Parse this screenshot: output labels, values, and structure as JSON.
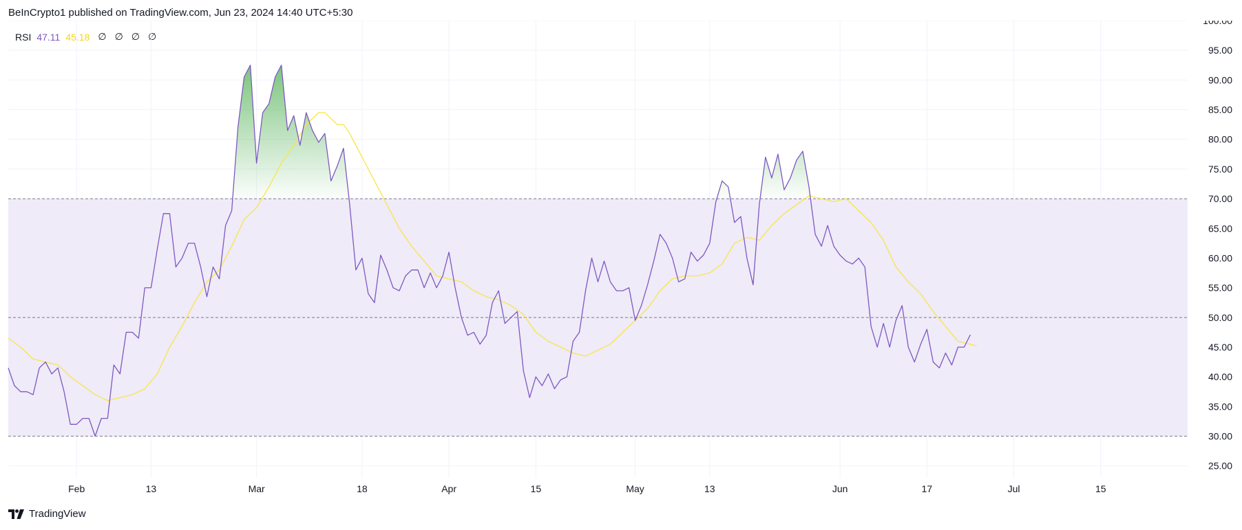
{
  "header": {
    "attribution": "BeInCrypto1 published on TradingView.com, Jun 23, 2024 14:40 UTC+5:30"
  },
  "legend": {
    "name": "RSI",
    "rsi_value": "47.11",
    "ma_value": "45.18",
    "na_values": [
      "∅",
      "∅",
      "∅",
      "∅"
    ]
  },
  "footer": {
    "brand": "TradingView",
    "logo_icon": "tradingview-logo-icon"
  },
  "colors": {
    "rsi_line": "#7e57c2",
    "ma_line": "#f9e547",
    "band_fill": "#efebf8",
    "overbought_fill": "#4caf50",
    "grid": "#f0f3fa",
    "dashed": "#787b86"
  },
  "chart_data": {
    "type": "line",
    "title": "",
    "xlabel": "",
    "ylabel": "",
    "ylim": [
      23,
      100
    ],
    "y_ticks": [
      "25.00",
      "30.00",
      "35.00",
      "40.00",
      "45.00",
      "50.00",
      "55.00",
      "60.00",
      "65.00",
      "70.00",
      "75.00",
      "80.00",
      "85.00",
      "90.00",
      "95.00",
      "100.00"
    ],
    "x_tick_labels": [
      {
        "date": "2024-02-01",
        "label": "Feb"
      },
      {
        "date": "2024-02-13",
        "label": "13"
      },
      {
        "date": "2024-03-01",
        "label": "Mar"
      },
      {
        "date": "2024-03-18",
        "label": "18"
      },
      {
        "date": "2024-04-01",
        "label": "Apr"
      },
      {
        "date": "2024-04-15",
        "label": "15"
      },
      {
        "date": "2024-05-01",
        "label": "May"
      },
      {
        "date": "2024-05-13",
        "label": "13"
      },
      {
        "date": "2024-06-03",
        "label": "Jun"
      },
      {
        "date": "2024-06-17",
        "label": "17"
      },
      {
        "date": "2024-07-01",
        "label": "Jul"
      },
      {
        "date": "2024-07-15",
        "label": "15"
      }
    ],
    "x_range": [
      "2024-01-21",
      "2024-07-29"
    ],
    "levels": {
      "upper": 70,
      "middle": 50,
      "lower": 30
    },
    "grid": true,
    "series": [
      {
        "key": "rsi",
        "points": [
          [
            "2024-01-21",
            41.5
          ],
          [
            "2024-01-22",
            38.5
          ],
          [
            "2024-01-23",
            37.5
          ],
          [
            "2024-01-24",
            37.5
          ],
          [
            "2024-01-25",
            37
          ],
          [
            "2024-01-26",
            41.5
          ],
          [
            "2024-01-27",
            42.5
          ],
          [
            "2024-01-28",
            40.5
          ],
          [
            "2024-01-29",
            41.5
          ],
          [
            "2024-01-30",
            37.5
          ],
          [
            "2024-01-31",
            32
          ],
          [
            "2024-02-01",
            32
          ],
          [
            "2024-02-02",
            33
          ],
          [
            "2024-02-03",
            33
          ],
          [
            "2024-02-04",
            30
          ],
          [
            "2024-02-05",
            33
          ],
          [
            "2024-02-06",
            33
          ],
          [
            "2024-02-07",
            42
          ],
          [
            "2024-02-08",
            40.5
          ],
          [
            "2024-02-09",
            47.5
          ],
          [
            "2024-02-10",
            47.5
          ],
          [
            "2024-02-11",
            46.5
          ],
          [
            "2024-02-12",
            55
          ],
          [
            "2024-02-13",
            55
          ],
          [
            "2024-02-14",
            61.5
          ],
          [
            "2024-02-15",
            67.5
          ],
          [
            "2024-02-16",
            67.5
          ],
          [
            "2024-02-17",
            58.5
          ],
          [
            "2024-02-18",
            60
          ],
          [
            "2024-02-19",
            62.5
          ],
          [
            "2024-02-20",
            62.5
          ],
          [
            "2024-02-21",
            58.5
          ],
          [
            "2024-02-22",
            53.5
          ],
          [
            "2024-02-23",
            58.5
          ],
          [
            "2024-02-24",
            56.5
          ],
          [
            "2024-02-25",
            65.5
          ],
          [
            "2024-02-26",
            68
          ],
          [
            "2024-02-27",
            82
          ],
          [
            "2024-02-28",
            90.5
          ],
          [
            "2024-02-29",
            92.5
          ],
          [
            "2024-03-01",
            76
          ],
          [
            "2024-03-02",
            84.5
          ],
          [
            "2024-03-03",
            86
          ],
          [
            "2024-03-04",
            90.5
          ],
          [
            "2024-03-05",
            92.5
          ],
          [
            "2024-03-06",
            81.5
          ],
          [
            "2024-03-07",
            84
          ],
          [
            "2024-03-08",
            79
          ],
          [
            "2024-03-09",
            84.5
          ],
          [
            "2024-03-10",
            81.5
          ],
          [
            "2024-03-11",
            79.5
          ],
          [
            "2024-03-12",
            81
          ],
          [
            "2024-03-13",
            73
          ],
          [
            "2024-03-14",
            75.5
          ],
          [
            "2024-03-15",
            78.5
          ],
          [
            "2024-03-16",
            69
          ],
          [
            "2024-03-17",
            58
          ],
          [
            "2024-03-18",
            60
          ],
          [
            "2024-03-19",
            54
          ],
          [
            "2024-03-20",
            52.5
          ],
          [
            "2024-03-21",
            60.5
          ],
          [
            "2024-03-22",
            58
          ],
          [
            "2024-03-23",
            55
          ],
          [
            "2024-03-24",
            54.5
          ],
          [
            "2024-03-25",
            57
          ],
          [
            "2024-03-26",
            58
          ],
          [
            "2024-03-27",
            58
          ],
          [
            "2024-03-28",
            55
          ],
          [
            "2024-03-29",
            57.5
          ],
          [
            "2024-03-30",
            55
          ],
          [
            "2024-03-31",
            57
          ],
          [
            "2024-04-01",
            61
          ],
          [
            "2024-04-02",
            55
          ],
          [
            "2024-04-03",
            50
          ],
          [
            "2024-04-04",
            47
          ],
          [
            "2024-04-05",
            47.5
          ],
          [
            "2024-04-06",
            45.5
          ],
          [
            "2024-04-07",
            47
          ],
          [
            "2024-04-08",
            52.5
          ],
          [
            "2024-04-09",
            54.5
          ],
          [
            "2024-04-10",
            49
          ],
          [
            "2024-04-11",
            50
          ],
          [
            "2024-04-12",
            51
          ],
          [
            "2024-04-13",
            41
          ],
          [
            "2024-04-14",
            36.5
          ],
          [
            "2024-04-15",
            40
          ],
          [
            "2024-04-16",
            38.5
          ],
          [
            "2024-04-17",
            40.5
          ],
          [
            "2024-04-18",
            38
          ],
          [
            "2024-04-19",
            39.5
          ],
          [
            "2024-04-20",
            40
          ],
          [
            "2024-04-21",
            46
          ],
          [
            "2024-04-22",
            47.5
          ],
          [
            "2024-04-23",
            54.5
          ],
          [
            "2024-04-24",
            60
          ],
          [
            "2024-04-25",
            56
          ],
          [
            "2024-04-26",
            59.5
          ],
          [
            "2024-04-27",
            56
          ],
          [
            "2024-04-28",
            54.5
          ],
          [
            "2024-04-29",
            54.5
          ],
          [
            "2024-04-30",
            55
          ],
          [
            "2024-05-01",
            49.5
          ],
          [
            "2024-05-02",
            52
          ],
          [
            "2024-05-03",
            55.5
          ],
          [
            "2024-05-04",
            59.5
          ],
          [
            "2024-05-05",
            64
          ],
          [
            "2024-05-06",
            62.5
          ],
          [
            "2024-05-07",
            60
          ],
          [
            "2024-05-08",
            56
          ],
          [
            "2024-05-09",
            56.5
          ],
          [
            "2024-05-10",
            61
          ],
          [
            "2024-05-11",
            59.5
          ],
          [
            "2024-05-12",
            60.5
          ],
          [
            "2024-05-13",
            62.5
          ],
          [
            "2024-05-14",
            69.5
          ],
          [
            "2024-05-15",
            73
          ],
          [
            "2024-05-16",
            72
          ],
          [
            "2024-05-17",
            66
          ],
          [
            "2024-05-18",
            67
          ],
          [
            "2024-05-19",
            60
          ],
          [
            "2024-05-20",
            55.5
          ],
          [
            "2024-05-21",
            69
          ],
          [
            "2024-05-22",
            77
          ],
          [
            "2024-05-23",
            73.5
          ],
          [
            "2024-05-24",
            77.5
          ],
          [
            "2024-05-25",
            71.5
          ],
          [
            "2024-05-26",
            73.5
          ],
          [
            "2024-05-27",
            76.5
          ],
          [
            "2024-05-28",
            78
          ],
          [
            "2024-05-29",
            72
          ],
          [
            "2024-05-30",
            64
          ],
          [
            "2024-05-31",
            62
          ],
          [
            "2024-06-01",
            65.5
          ],
          [
            "2024-06-02",
            62
          ],
          [
            "2024-06-03",
            60.5
          ],
          [
            "2024-06-04",
            59.5
          ],
          [
            "2024-06-05",
            59
          ],
          [
            "2024-06-06",
            60
          ],
          [
            "2024-06-07",
            58.5
          ],
          [
            "2024-06-08",
            48.5
          ],
          [
            "2024-06-09",
            45
          ],
          [
            "2024-06-10",
            49
          ],
          [
            "2024-06-11",
            45
          ],
          [
            "2024-06-12",
            49.5
          ],
          [
            "2024-06-13",
            52
          ],
          [
            "2024-06-14",
            45
          ],
          [
            "2024-06-15",
            42.5
          ],
          [
            "2024-06-16",
            45.5
          ],
          [
            "2024-06-17",
            48
          ],
          [
            "2024-06-18",
            42.5
          ],
          [
            "2024-06-19",
            41.5
          ],
          [
            "2024-06-20",
            44
          ],
          [
            "2024-06-21",
            42
          ],
          [
            "2024-06-22",
            45
          ],
          [
            "2024-06-23",
            45
          ],
          [
            "2024-06-24",
            47.1
          ]
        ]
      },
      {
        "key": "ma",
        "points": [
          [
            "2024-01-21",
            46.5
          ],
          [
            "2024-01-23",
            45
          ],
          [
            "2024-01-25",
            43
          ],
          [
            "2024-01-27",
            42.5
          ],
          [
            "2024-01-29",
            42
          ],
          [
            "2024-01-31",
            40
          ],
          [
            "2024-02-02",
            38.5
          ],
          [
            "2024-02-04",
            37
          ],
          [
            "2024-02-06",
            36
          ],
          [
            "2024-02-08",
            36.5
          ],
          [
            "2024-02-10",
            37
          ],
          [
            "2024-02-12",
            38
          ],
          [
            "2024-02-14",
            40.5
          ],
          [
            "2024-02-16",
            45
          ],
          [
            "2024-02-18",
            48.5
          ],
          [
            "2024-02-20",
            52.5
          ],
          [
            "2024-02-22",
            56
          ],
          [
            "2024-02-24",
            58
          ],
          [
            "2024-02-26",
            62
          ],
          [
            "2024-02-28",
            66.5
          ],
          [
            "2024-03-01",
            68.5
          ],
          [
            "2024-03-03",
            72
          ],
          [
            "2024-03-05",
            76
          ],
          [
            "2024-03-07",
            79
          ],
          [
            "2024-03-09",
            82.5
          ],
          [
            "2024-03-11",
            84.5
          ],
          [
            "2024-03-12",
            84.5
          ],
          [
            "2024-03-14",
            82.5
          ],
          [
            "2024-03-15",
            82.5
          ],
          [
            "2024-03-16",
            81
          ],
          [
            "2024-03-18",
            77
          ],
          [
            "2024-03-20",
            73
          ],
          [
            "2024-03-22",
            69
          ],
          [
            "2024-03-24",
            65
          ],
          [
            "2024-03-26",
            62
          ],
          [
            "2024-03-28",
            59.5
          ],
          [
            "2024-03-30",
            57
          ],
          [
            "2024-04-01",
            56.5
          ],
          [
            "2024-04-03",
            56
          ],
          [
            "2024-04-05",
            54.5
          ],
          [
            "2024-04-07",
            53.5
          ],
          [
            "2024-04-09",
            53
          ],
          [
            "2024-04-11",
            52
          ],
          [
            "2024-04-13",
            50.5
          ],
          [
            "2024-04-15",
            47.5
          ],
          [
            "2024-04-17",
            46
          ],
          [
            "2024-04-19",
            45
          ],
          [
            "2024-04-21",
            44
          ],
          [
            "2024-04-23",
            43.5
          ],
          [
            "2024-04-25",
            44.5
          ],
          [
            "2024-04-27",
            45.5
          ],
          [
            "2024-04-29",
            47.5
          ],
          [
            "2024-05-01",
            49.5
          ],
          [
            "2024-05-03",
            51.5
          ],
          [
            "2024-05-05",
            54.5
          ],
          [
            "2024-05-07",
            56.5
          ],
          [
            "2024-05-09",
            57
          ],
          [
            "2024-05-11",
            57
          ],
          [
            "2024-05-13",
            57.5
          ],
          [
            "2024-05-15",
            59
          ],
          [
            "2024-05-17",
            62.5
          ],
          [
            "2024-05-19",
            63.5
          ],
          [
            "2024-05-21",
            63
          ],
          [
            "2024-05-23",
            65.5
          ],
          [
            "2024-05-25",
            67.5
          ],
          [
            "2024-05-27",
            69
          ],
          [
            "2024-05-29",
            70.5
          ],
          [
            "2024-05-31",
            70
          ],
          [
            "2024-06-02",
            69.5
          ],
          [
            "2024-06-04",
            70
          ],
          [
            "2024-06-06",
            68
          ],
          [
            "2024-06-08",
            66
          ],
          [
            "2024-06-10",
            63
          ],
          [
            "2024-06-12",
            58.5
          ],
          [
            "2024-06-14",
            56
          ],
          [
            "2024-06-16",
            54
          ],
          [
            "2024-06-18",
            51
          ],
          [
            "2024-06-20",
            48.5
          ],
          [
            "2024-06-22",
            46
          ],
          [
            "2024-06-24",
            45.5
          ],
          [
            "2024-06-25",
            45.2
          ]
        ]
      }
    ]
  }
}
